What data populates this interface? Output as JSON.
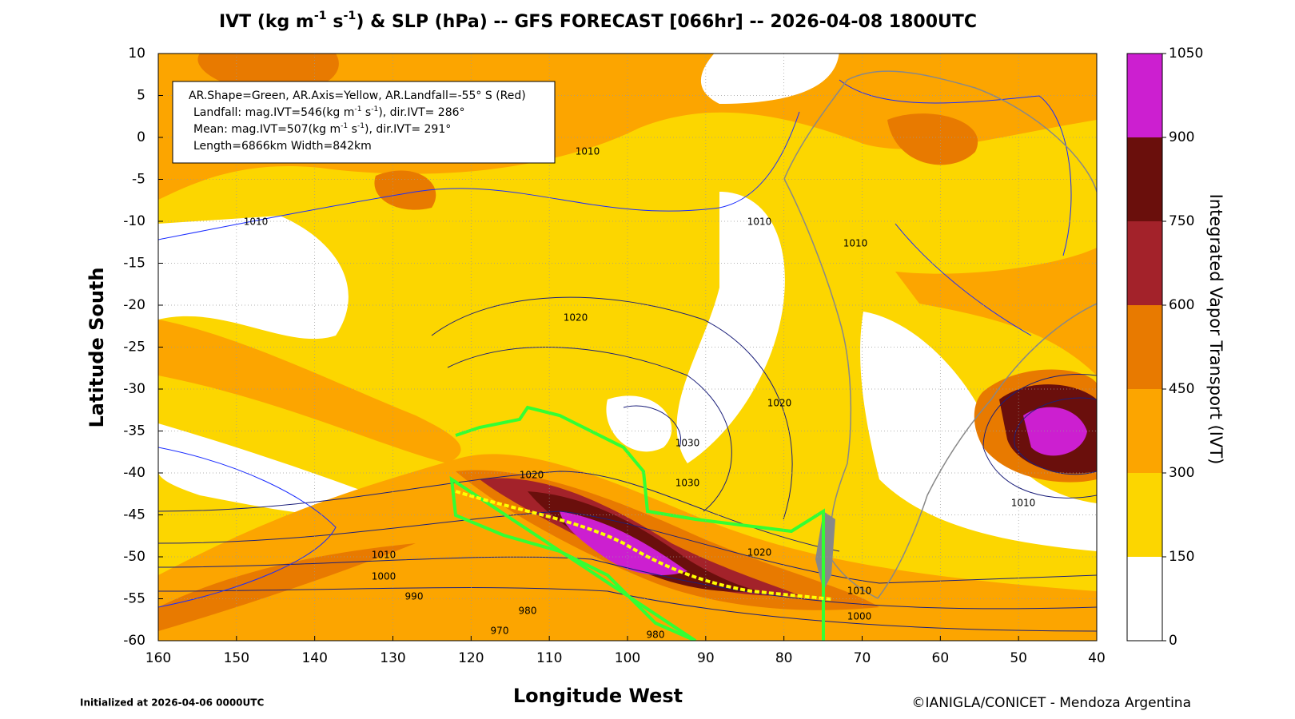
{
  "title": [
    "IVT (kg m",
    "-1",
    " s",
    "-1",
    ") & SLP (hPa) -- GFS FORECAST [066hr] -- 2026-04-08 1800UTC"
  ],
  "map": {
    "xlabel": "Longitude West",
    "ylabel": "Latitude South",
    "xlim": [
      160,
      40
    ],
    "ylim": [
      -60,
      10
    ],
    "xticks": [
      160,
      150,
      140,
      130,
      120,
      110,
      100,
      90,
      80,
      70,
      60,
      50,
      40
    ],
    "yticks": [
      10,
      5,
      0,
      -5,
      -10,
      -15,
      -20,
      -25,
      -30,
      -35,
      -40,
      -45,
      -50,
      -55,
      -60
    ],
    "grid": true
  },
  "colorbar": {
    "label": "Integrated Vapor Transport (IVT)",
    "levels": [
      0,
      150,
      300,
      450,
      600,
      750,
      900,
      1050
    ],
    "colors": [
      "#ffffff",
      "#fcd600",
      "#fca500",
      "#e87a00",
      "#a3222a",
      "#6a0f0c",
      "#cc1fd0"
    ]
  },
  "info_box": {
    "lines": [
      [
        "AR.Shape=Green, AR.Axis=Yellow, AR.Landfall=-55° S (Red)"
      ],
      [
        "Landfall: mag.IVT=546(kg m",
        "-1",
        " s",
        "-1",
        "), dir.IVT= 286°"
      ],
      [
        "Mean: mag.IVT=507(kg m",
        "-1",
        " s",
        "-1",
        "), dir.IVT= 291°"
      ],
      [
        "Length=6866km   Width=842km"
      ]
    ]
  },
  "contour_labels": [
    1010,
    1010,
    1010,
    1010,
    1020,
    1020,
    1030,
    1030,
    1020,
    1010,
    1000,
    990,
    980,
    970,
    980,
    1010,
    1000,
    1020,
    1010
  ],
  "footer": {
    "left": "Initialized at 2026-04-06 0000UTC",
    "right": "©IANIGLA/CONICET - Mendoza Argentina"
  }
}
